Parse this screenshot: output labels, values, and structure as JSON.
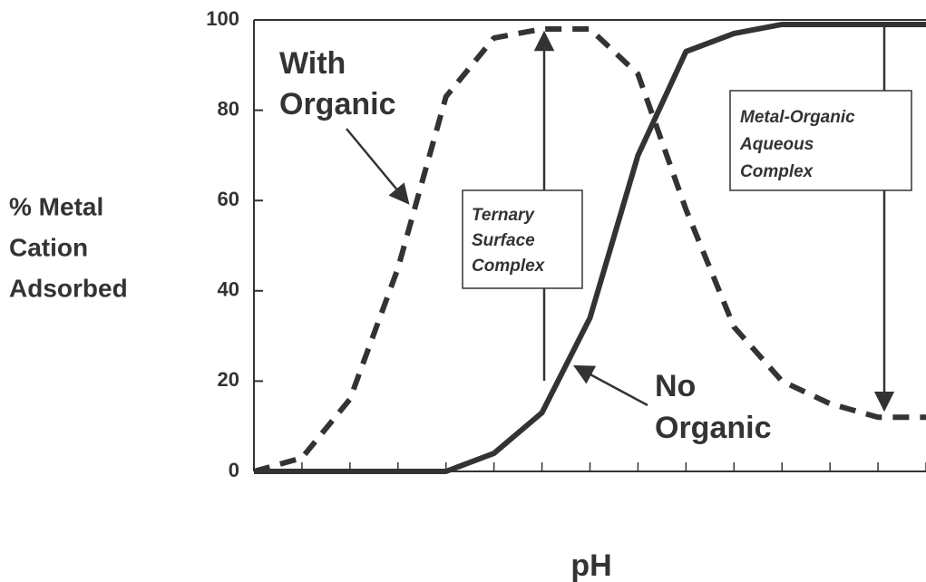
{
  "chart_data": {
    "type": "line",
    "x_label": "pH",
    "y_label": [
      "% Metal",
      "Cation",
      "Adsorbed"
    ],
    "categories": [
      null,
      null,
      null,
      null,
      null,
      null,
      null,
      null,
      null,
      null,
      null,
      null,
      null,
      null,
      null
    ],
    "series": [
      {
        "style": "dashed",
        "color": "#333333",
        "values": [
          0,
          3,
          16,
          45,
          83,
          96,
          98,
          98,
          88,
          58,
          32,
          20,
          15,
          12,
          12
        ]
      },
      {
        "style": "solid",
        "color": "#333333",
        "values": [
          0,
          0,
          0,
          0,
          0,
          4,
          13,
          34,
          70,
          93,
          97,
          99,
          99,
          99,
          99
        ]
      }
    ],
    "ylim": [
      0,
      100
    ],
    "yticks": [
      0,
      20,
      40,
      60,
      80,
      100
    ],
    "annotations": [
      {
        "lines": [
          "With",
          "Organic"
        ]
      },
      {
        "lines": [
          "No",
          "Organic"
        ]
      },
      {
        "lines": [
          "Ternary",
          "Surface",
          "Complex"
        ]
      },
      {
        "lines": [
          "Metal-Organic",
          "Aqueous",
          "Complex"
        ]
      }
    ]
  }
}
